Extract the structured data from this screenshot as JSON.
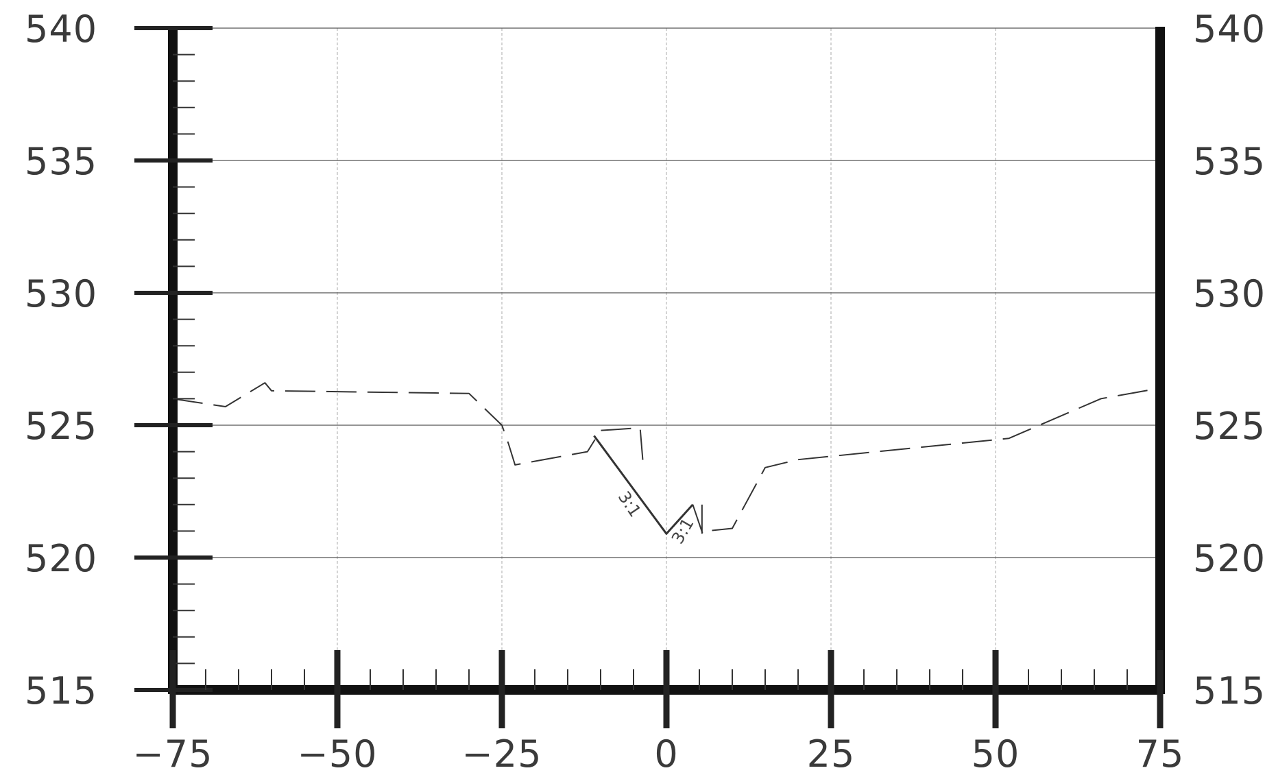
{
  "chart_data": {
    "type": "line",
    "title": "",
    "xlabel": "",
    "ylabel": "",
    "xlim": [
      -75,
      75
    ],
    "ylim": [
      515,
      540
    ],
    "x_ticks": [
      -75,
      -50,
      -25,
      0,
      25,
      50,
      75
    ],
    "x_tick_labels": [
      "−75",
      "−50",
      "−25",
      "0",
      "25",
      "50",
      "75"
    ],
    "y_ticks": [
      515,
      520,
      525,
      530,
      535,
      540
    ],
    "y_tick_labels": [
      "515",
      "520",
      "525",
      "530",
      "535",
      "540"
    ],
    "grid": true,
    "series": [
      {
        "style": "dashed",
        "color": "#333333",
        "x": [
          -75,
          -67,
          -61,
          -60,
          -30,
          -25,
          -24,
          -23,
          -12,
          -10,
          -4,
          -3.5
        ],
        "y": [
          526.0,
          525.7,
          526.6,
          526.3,
          526.2,
          525.0,
          524.3,
          523.5,
          524.0,
          524.8,
          524.9,
          523.4
        ]
      },
      {
        "style": "solid",
        "color": "#333333",
        "x": [
          -11,
          0,
          4
        ],
        "y": [
          524.6,
          520.9,
          522.0
        ]
      },
      {
        "style": "dashed",
        "color": "#333333",
        "x": [
          4,
          5.5,
          6,
          10,
          15,
          20,
          52,
          66,
          75
        ],
        "y": [
          522.0,
          520.9,
          521.0,
          521.1,
          523.4,
          523.7,
          524.5,
          526.0,
          526.4
        ]
      }
    ],
    "annotations": [
      {
        "text": "3:1",
        "x": -6.3,
        "y": 521.9,
        "angle": 56
      },
      {
        "text": "3:1",
        "x": 3.2,
        "y": 520.9,
        "angle": -60
      }
    ]
  }
}
